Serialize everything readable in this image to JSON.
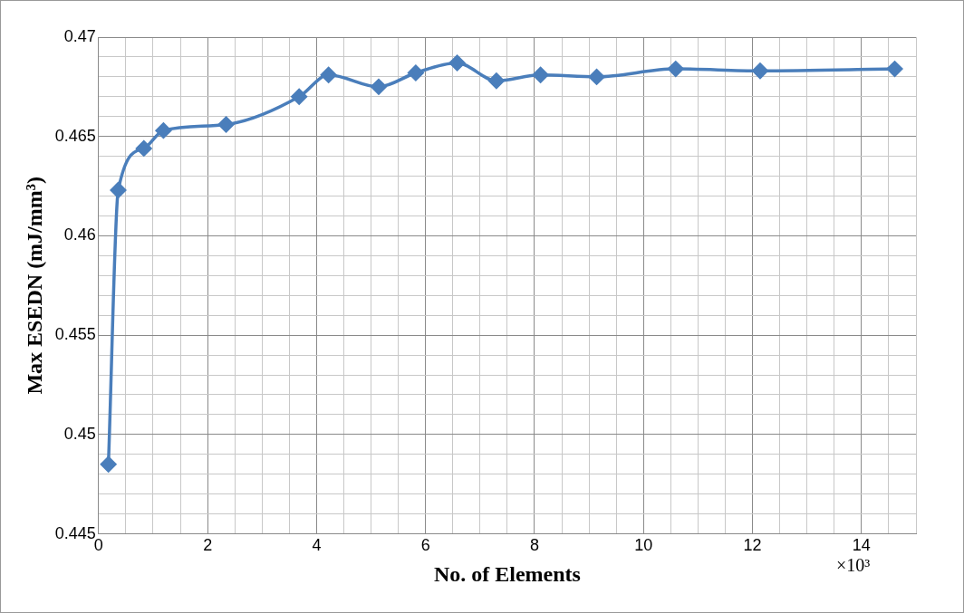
{
  "chart_data": {
    "type": "line",
    "xlabel": "No. of Elements",
    "ylabel": "Max ESEDN (mJ/mm³)",
    "annotations": [
      "×10³"
    ],
    "x": [
      0.18,
      0.36,
      0.83,
      1.19,
      2.34,
      3.68,
      4.22,
      5.14,
      5.82,
      6.58,
      7.3,
      8.11,
      9.14,
      10.59,
      12.14,
      14.61
    ],
    "series": [
      {
        "color": "#4a7ebb",
        "values": [
          0.4485,
          0.4623,
          0.4644,
          0.4653,
          0.4656,
          0.467,
          0.4681,
          0.4675,
          0.4682,
          0.4687,
          0.4678,
          0.4681,
          0.468,
          0.4684,
          0.4683,
          0.4684
        ]
      }
    ],
    "xlim": [
      0,
      15
    ],
    "xticks": [
      0,
      {
        "value": 0.5,
        "label": null
      },
      2,
      {
        "value": 1,
        "label": null
      },
      {
        "value": 1.5,
        "label": null
      },
      {
        "value": 2.5,
        "label": null
      },
      {
        "value": 3,
        "label": null
      },
      {
        "value": 3.5,
        "label": null
      },
      4,
      {
        "value": 4.5,
        "label": null
      },
      {
        "value": 5,
        "label": null
      },
      {
        "value": 5.5,
        "label": null
      },
      6,
      {
        "value": 6.5,
        "label": null
      },
      {
        "value": 7,
        "label": null
      },
      {
        "value": 7.5,
        "label": null
      },
      8,
      {
        "value": 8.5,
        "label": null
      },
      {
        "value": 9,
        "label": null
      },
      {
        "value": 9.5,
        "label": null
      },
      10,
      {
        "value": 10.5,
        "label": null
      },
      {
        "value": 11,
        "label": null
      },
      {
        "value": 11.5,
        "label": null
      },
      12,
      {
        "value": 12.5,
        "label": null
      },
      {
        "value": 13,
        "label": null
      },
      {
        "value": 13.5,
        "label": null
      },
      14,
      {
        "value": 14.5,
        "label": null
      },
      {
        "value": 15,
        "label": null
      }
    ],
    "ylim": [
      0.445,
      0.47
    ],
    "yticks": [
      0.445,
      {
        "value": 0.446,
        "label": null
      },
      {
        "value": 0.447,
        "label": null
      },
      {
        "value": 0.448,
        "label": null
      },
      {
        "value": 0.449,
        "label": null
      },
      0.45,
      {
        "value": 0.451,
        "label": null
      },
      {
        "value": 0.452,
        "label": null
      },
      {
        "value": 0.453,
        "label": null
      },
      {
        "value": 0.454,
        "label": null
      },
      0.455,
      {
        "value": 0.456,
        "label": null
      },
      {
        "value": 0.457,
        "label": null
      },
      {
        "value": 0.458,
        "label": null
      },
      {
        "value": 0.459,
        "label": null
      },
      0.46,
      {
        "value": 0.461,
        "label": null
      },
      {
        "value": 0.462,
        "label": null
      },
      {
        "value": 0.463,
        "label": null
      },
      {
        "value": 0.464,
        "label": null
      },
      0.465,
      {
        "value": 0.466,
        "label": null
      },
      {
        "value": 0.467,
        "label": null
      },
      {
        "value": 0.468,
        "label": null
      },
      {
        "value": 0.469,
        "label": null
      },
      0.47
    ],
    "grid": true,
    "legend": false,
    "marker": "diamond",
    "line_style": "solid"
  }
}
